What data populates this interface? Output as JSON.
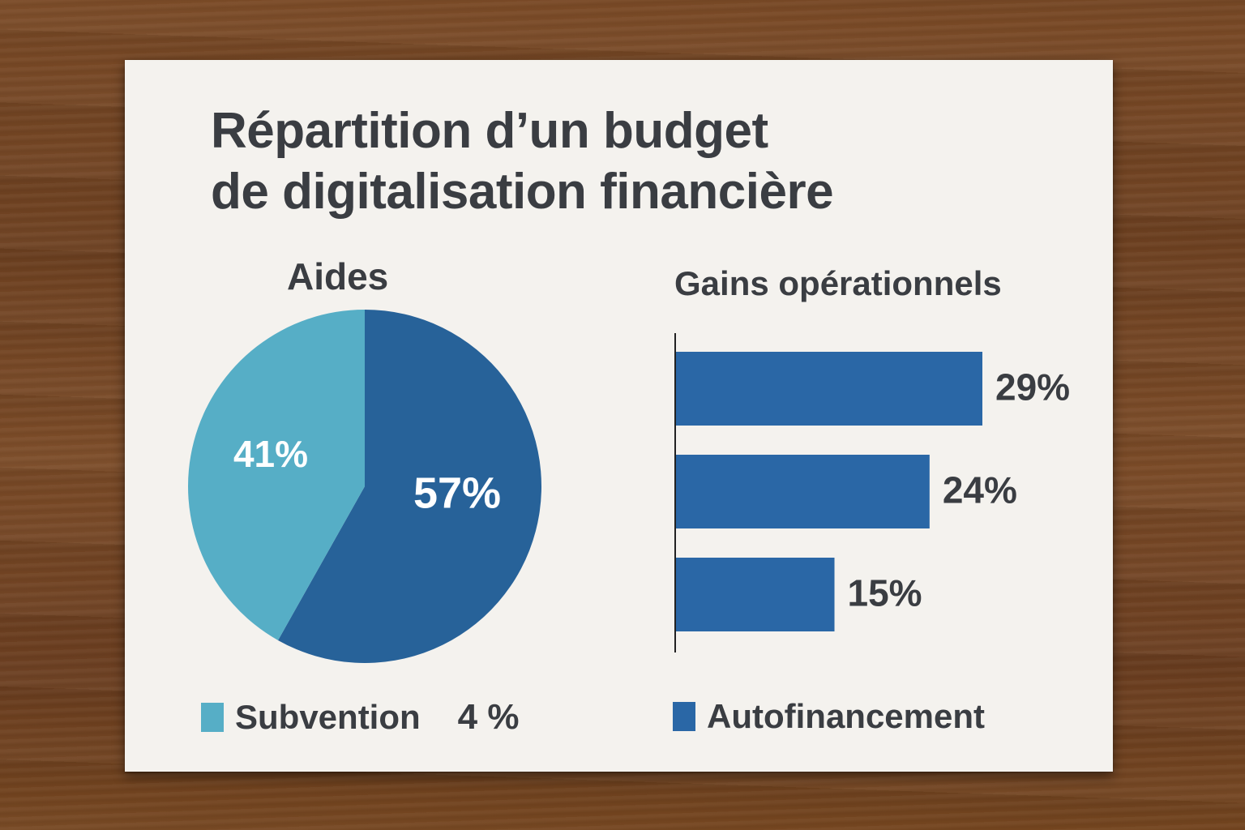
{
  "title_lines": [
    "Répartition d’un budget",
    "de digitalisation financière"
  ],
  "colors": {
    "light_blue": "#56aec6",
    "dark_blue": "#276299",
    "bar_blue": "#2a67a6",
    "text": "#3a3d42",
    "card": "#f4f2ee"
  },
  "chart_data": [
    {
      "type": "pie",
      "title": "Aides",
      "slices": [
        {
          "label_text": "57%",
          "value": 57,
          "color": "#276299"
        },
        {
          "label_text": "41%",
          "value": 41,
          "color": "#56aec6"
        }
      ]
    },
    {
      "type": "bar",
      "orientation": "horizontal",
      "title": "Gains opérationnels",
      "values": [
        29,
        24,
        15
      ],
      "value_labels": [
        "29%",
        "24%",
        "15%"
      ],
      "color": "#2a67a6",
      "xlim": [
        0,
        29
      ]
    }
  ],
  "legend": {
    "left": {
      "label": "Subvention",
      "extra": "4 %",
      "color": "#56aec6"
    },
    "right": {
      "label": "Autofinancement",
      "color": "#2a67a6"
    }
  }
}
